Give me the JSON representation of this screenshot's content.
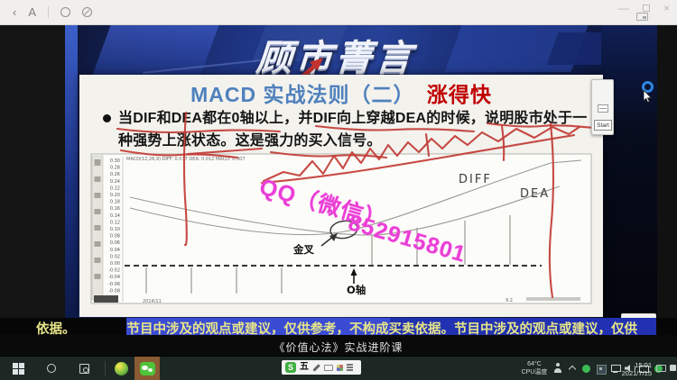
{
  "titlebar": {
    "back": "‹",
    "reader_label": "A",
    "minimize": "—",
    "close": "×"
  },
  "video": {
    "logo_text": "顾市菁言",
    "slide": {
      "title_main": "MACD  实战法则（二）",
      "title_accent": "涨得快",
      "bullet_line1": "当DIF和DEA都在0轴以上，并DIF向上穿越DEA的时候，说明股市处于一",
      "bullet_line2": "种强势上涨状态。这是强力的买入信号。",
      "watermark_name": "QQ（微信）",
      "watermark_number": "852915801",
      "chart": {
        "type": "line",
        "header": "MACD(12,26,9)  DIFF: 0.017  DEA: 0.012  MACD: 0.007",
        "y_labels": [
          "0.30",
          "0.28",
          "0.26",
          "0.24",
          "0.22",
          "0.20",
          "0.18",
          "0.16",
          "0.14",
          "0.12",
          "0.10",
          "0.08",
          "0.06",
          "0.04",
          "0.02",
          "0.00",
          "-0.02",
          "-0.04",
          "-0.06",
          "-0.08"
        ],
        "series": [
          "DIFF",
          "DEA"
        ],
        "diff_label": "DIFF",
        "dea_label": "DEA",
        "golden_cross_label": "金叉",
        "zero_axis_label": "O轴",
        "date_label": "2014/11",
        "corner_label": "9.2"
      }
    },
    "overlay_toolbar": {
      "start_label": "Start"
    },
    "marquee": {
      "prefix": "依据。",
      "text": "节目中涉及的观点或建议，仅供参考，不构成买卖依据。节目中涉及的观点或建议，仅供"
    },
    "subtitle": "《价值心法》实战进阶课"
  },
  "taskbar": {
    "ime": {
      "logo": "S",
      "mode": "五"
    },
    "tray": {
      "cpu_temp": "64°C",
      "cpu_label": "CPU温度",
      "time": "15:01",
      "date": "2021/7/15",
      "icons": [
        "user",
        "caret-up",
        "wechat-status",
        "app-window",
        "network",
        "volume",
        "battery",
        "messenger-status"
      ]
    }
  },
  "colors": {
    "accent_blue": "#4f81bd",
    "accent_red": "#c00000",
    "annotation_red": "#c23b35",
    "watermark_pink": "#ea3fd6",
    "marquee_yellow": "#e7e588"
  }
}
